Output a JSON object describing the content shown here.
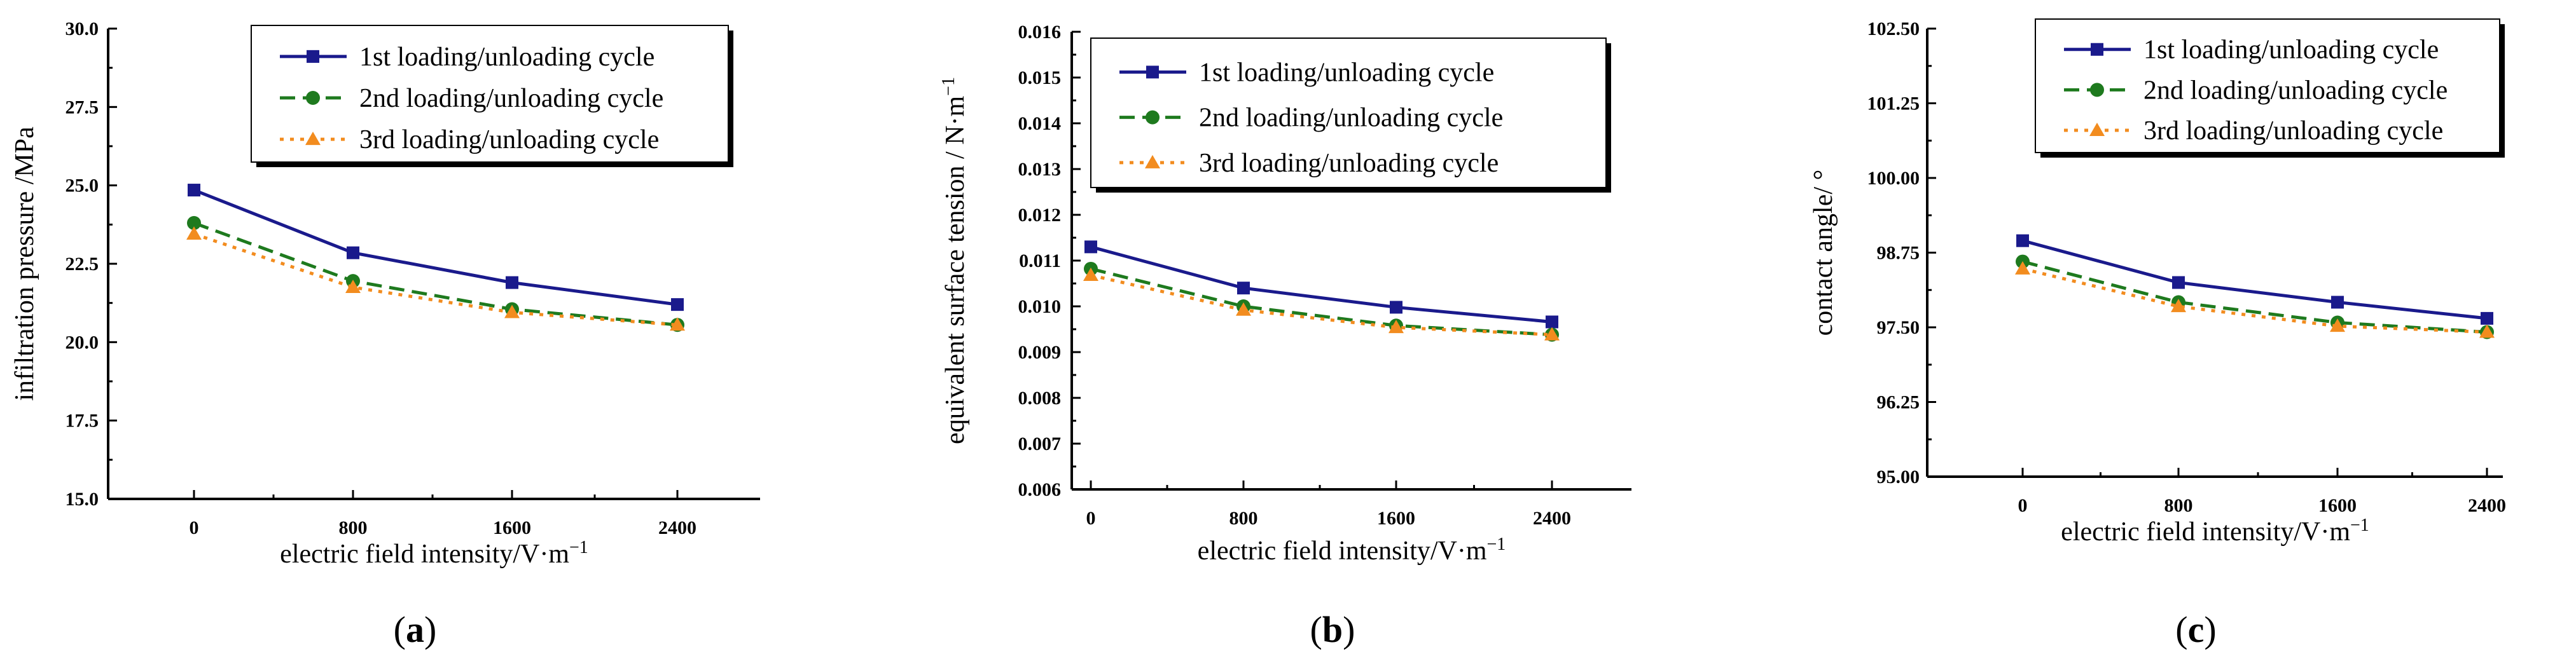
{
  "figure": {
    "panels": [
      {
        "label": "a"
      },
      {
        "label": "b"
      },
      {
        "label": "c"
      }
    ]
  },
  "colors": {
    "series1": "#1a1a8c",
    "series2": "#1e7a1e",
    "series3": "#f28c1f",
    "axis": "#000000"
  },
  "chart_data": [
    {
      "type": "line",
      "panel": "a",
      "title": "",
      "xlabel": "electric field intensity/V·m",
      "xlabel_sup": "−1",
      "ylabel": "infiltration pressure /MPa",
      "categories": [
        "0",
        "800",
        "1600",
        "2400"
      ],
      "ylim": [
        15.0,
        30.0
      ],
      "yticks": [
        "15.0",
        "17.5",
        "20.0",
        "22.5",
        "25.0",
        "27.5",
        "30.0"
      ],
      "legend": "top-right",
      "series": [
        {
          "name": "1st loading/unloading cycle",
          "marker": "square",
          "dash": "solid",
          "values": [
            24.85,
            22.85,
            21.9,
            21.2
          ]
        },
        {
          "name": "2nd loading/unloading cycle",
          "marker": "circle",
          "dash": "dashed",
          "values": [
            23.8,
            21.95,
            21.05,
            20.55
          ]
        },
        {
          "name": "3rd loading/unloading cycle",
          "marker": "triangle",
          "dash": "dotted",
          "values": [
            23.45,
            21.75,
            20.95,
            20.55
          ]
        }
      ]
    },
    {
      "type": "line",
      "panel": "b",
      "title": "",
      "xlabel": "electric field intensity/V·m",
      "xlabel_sup": "−1",
      "ylabel": "equivalent  surface tension / N·m",
      "ylabel_sup": "−1",
      "categories": [
        "0",
        "800",
        "1600",
        "2400"
      ],
      "ylim": [
        0.006,
        0.016
      ],
      "yticks": [
        "0.006",
        "0.007",
        "0.008",
        "0.009",
        "0.010",
        "0.011",
        "0.012",
        "0.013",
        "0.014",
        "0.015",
        "0.016"
      ],
      "legend": "top-right",
      "series": [
        {
          "name": "1st loading/unloading cycle",
          "marker": "square",
          "dash": "solid",
          "values": [
            0.0113,
            0.0104,
            0.00998,
            0.00966
          ]
        },
        {
          "name": "2nd loading/unloading cycle",
          "marker": "circle",
          "dash": "dashed",
          "values": [
            0.01082,
            0.01,
            0.00958,
            0.00938
          ]
        },
        {
          "name": "3rd loading/unloading cycle",
          "marker": "triangle",
          "dash": "dotted",
          "values": [
            0.01068,
            0.00992,
            0.00954,
            0.00938
          ]
        }
      ]
    },
    {
      "type": "line",
      "panel": "c",
      "title": "",
      "xlabel": "electric field intensity/V·m",
      "xlabel_sup": "−1",
      "ylabel": "contact angle/ °",
      "categories": [
        "0",
        "800",
        "1600",
        "2400"
      ],
      "ylim": [
        95.0,
        102.5
      ],
      "yticks": [
        "95.00",
        "96.25",
        "97.50",
        "98.75",
        "100.00",
        "101.25",
        "102.50"
      ],
      "legend": "top-right",
      "series": [
        {
          "name": "1st loading/unloading cycle",
          "marker": "square",
          "dash": "solid",
          "values": [
            98.95,
            98.25,
            97.92,
            97.65
          ]
        },
        {
          "name": "2nd loading/unloading cycle",
          "marker": "circle",
          "dash": "dashed",
          "values": [
            98.6,
            97.92,
            97.58,
            97.42
          ]
        },
        {
          "name": "3rd loading/unloading cycle",
          "marker": "triangle",
          "dash": "dotted",
          "values": [
            98.48,
            97.85,
            97.52,
            97.42
          ]
        }
      ]
    }
  ]
}
